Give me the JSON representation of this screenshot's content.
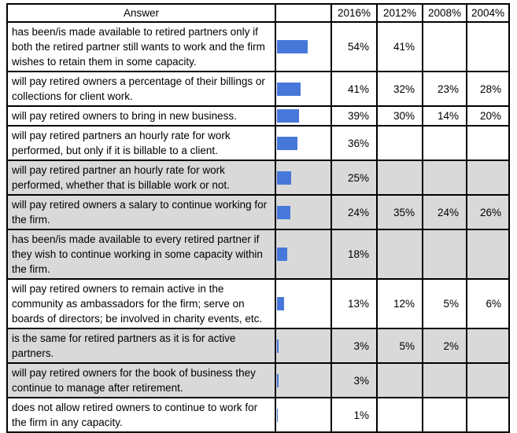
{
  "table": {
    "header": {
      "answer": "Answer",
      "bar": "",
      "y2016": "2016%",
      "y2012": "2012%",
      "y2008": "2008%",
      "y2004": "2004%"
    },
    "rows": [
      {
        "answer": "has been/is made available to retired partners only if both the retired partner still wants to work and the firm wishes to retain them in some capacity.",
        "bar_pct": 54,
        "v2016": "54%",
        "v2012": "41%",
        "v2008": "",
        "v2004": "",
        "shaded": false
      },
      {
        "answer": "will pay retired owners a percentage of their billings or collections for client work.",
        "bar_pct": 41,
        "v2016": "41%",
        "v2012": "32%",
        "v2008": "23%",
        "v2004": "28%",
        "shaded": false
      },
      {
        "answer": "will pay retired owners to bring in new business.",
        "bar_pct": 39,
        "v2016": "39%",
        "v2012": "30%",
        "v2008": "14%",
        "v2004": "20%",
        "shaded": false
      },
      {
        "answer": "will pay retired partners an hourly rate for work performed, but only if it is billable to a client.",
        "bar_pct": 36,
        "v2016": "36%",
        "v2012": "",
        "v2008": "",
        "v2004": "",
        "shaded": false
      },
      {
        "answer": "will pay retired partner an hourly rate for work performed, whether that is billable work or not.",
        "bar_pct": 25,
        "v2016": "25%",
        "v2012": "",
        "v2008": "",
        "v2004": "",
        "shaded": true
      },
      {
        "answer": "will pay retired owners a salary to continue working for the firm.",
        "bar_pct": 24,
        "v2016": "24%",
        "v2012": "35%",
        "v2008": "24%",
        "v2004": "26%",
        "shaded": true
      },
      {
        "answer": "has been/is made available to every retired partner if they wish to continue working in some capacity within the firm.",
        "bar_pct": 18,
        "v2016": "18%",
        "v2012": "",
        "v2008": "",
        "v2004": "",
        "shaded": true
      },
      {
        "answer": "will pay retired owners to remain active in the community as ambassadors for the firm; serve on boards of directors; be involved in charity events, etc.",
        "bar_pct": 13,
        "v2016": "13%",
        "v2012": "12%",
        "v2008": "5%",
        "v2004": "6%",
        "shaded": false
      },
      {
        "answer": "is the same for retired partners as it is for active partners.",
        "bar_pct": 3,
        "v2016": "3%",
        "v2012": "5%",
        "v2008": "2%",
        "v2004": "",
        "shaded": true
      },
      {
        "answer": "will pay retired owners for the book of business they continue to manage after retirement.",
        "bar_pct": 3,
        "v2016": "3%",
        "v2012": "",
        "v2008": "",
        "v2004": "",
        "shaded": true
      },
      {
        "answer": "does not allow retired owners to continue to work for the firm in any capacity.",
        "bar_pct": 1,
        "v2016": "1%",
        "v2012": "",
        "v2008": "",
        "v2004": "",
        "shaded": false
      }
    ]
  },
  "colors": {
    "bar": "#4778D9",
    "shaded_row": "#D9D9D9",
    "border": "#000000",
    "background": "#FFFFFF"
  },
  "chart_data": {
    "type": "bar",
    "orientation": "horizontal",
    "title": "",
    "xlabel": "",
    "ylabel": "",
    "xlim": [
      0,
      100
    ],
    "grid": false,
    "legend_position": "column-headers",
    "bars_depict_series": "2016%",
    "categories": [
      "has been/is made available to retired partners only if both the retired partner still wants to work and the firm wishes to retain them in some capacity.",
      "will pay retired owners a percentage of their billings or collections for client work.",
      "will pay retired owners to bring in new business.",
      "will pay retired partners an hourly rate for work performed, but only if it is billable to a client.",
      "will pay retired partner an hourly rate for work performed, whether that is billable work or not.",
      "will pay retired owners a salary to continue working for the firm.",
      "has been/is made available to every retired partner if they wish to continue working in some capacity within the firm.",
      "will pay retired owners to remain active in the community as ambassadors for the firm; serve on boards of directors; be involved in charity events, etc.",
      "is the same for retired partners as it is for active partners.",
      "will pay retired owners for the book of business they continue to manage after retirement.",
      "does not allow retired owners to continue to work for the firm in any capacity."
    ],
    "series": [
      {
        "name": "2016%",
        "values": [
          54,
          41,
          39,
          36,
          25,
          24,
          18,
          13,
          3,
          3,
          1
        ]
      },
      {
        "name": "2012%",
        "values": [
          41,
          32,
          30,
          null,
          null,
          35,
          null,
          12,
          5,
          null,
          null
        ]
      },
      {
        "name": "2008%",
        "values": [
          null,
          23,
          14,
          null,
          null,
          24,
          null,
          5,
          2,
          null,
          null
        ]
      },
      {
        "name": "2004%",
        "values": [
          null,
          28,
          20,
          null,
          null,
          26,
          null,
          6,
          null,
          null,
          null
        ]
      }
    ]
  }
}
